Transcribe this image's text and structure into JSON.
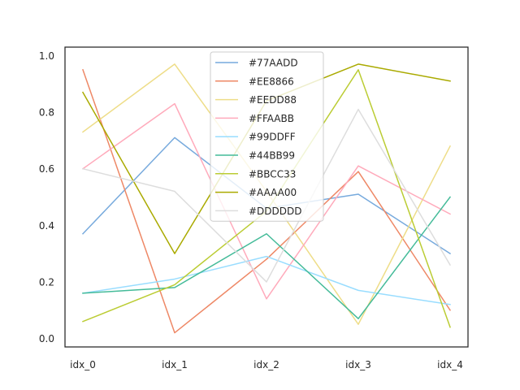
{
  "chart_data": {
    "type": "line",
    "categories": [
      "idx_0",
      "idx_1",
      "idx_2",
      "idx_3",
      "idx_4"
    ],
    "ylim": [
      -0.03,
      1.03
    ],
    "yticks": [
      0.0,
      0.2,
      0.4,
      0.6,
      0.8,
      1.0
    ],
    "ytick_labels": [
      "0.0",
      "0.2",
      "0.4",
      "0.6",
      "0.8",
      "1.0"
    ],
    "grid": false,
    "legend": "top-center",
    "series": [
      {
        "name": "#77AADD",
        "color": "#77AADD",
        "values": [
          0.37,
          0.71,
          0.46,
          0.51,
          0.3
        ]
      },
      {
        "name": "#EE8866",
        "color": "#EE8866",
        "values": [
          0.95,
          0.02,
          0.28,
          0.59,
          0.1
        ]
      },
      {
        "name": "#EEDD88",
        "color": "#EEDD88",
        "values": [
          0.73,
          0.97,
          0.52,
          0.05,
          0.68
        ]
      },
      {
        "name": "#FFAABB",
        "color": "#FFAABB",
        "values": [
          0.6,
          0.83,
          0.14,
          0.61,
          0.44
        ]
      },
      {
        "name": "#99DDFF",
        "color": "#99DDFF",
        "values": [
          0.16,
          0.21,
          0.29,
          0.17,
          0.12
        ]
      },
      {
        "name": "#44BB99",
        "color": "#44BB99",
        "values": [
          0.16,
          0.18,
          0.37,
          0.07,
          0.5
        ]
      },
      {
        "name": "#BBCC33",
        "color": "#BBCC33",
        "values": [
          0.06,
          0.19,
          0.45,
          0.95,
          0.04
        ]
      },
      {
        "name": "#AAAA00",
        "color": "#AAAA00",
        "values": [
          0.87,
          0.3,
          0.84,
          0.97,
          0.91
        ]
      },
      {
        "name": "#DDDDDD",
        "color": "#DDDDDD",
        "values": [
          0.6,
          0.52,
          0.2,
          0.81,
          0.26
        ]
      }
    ]
  }
}
